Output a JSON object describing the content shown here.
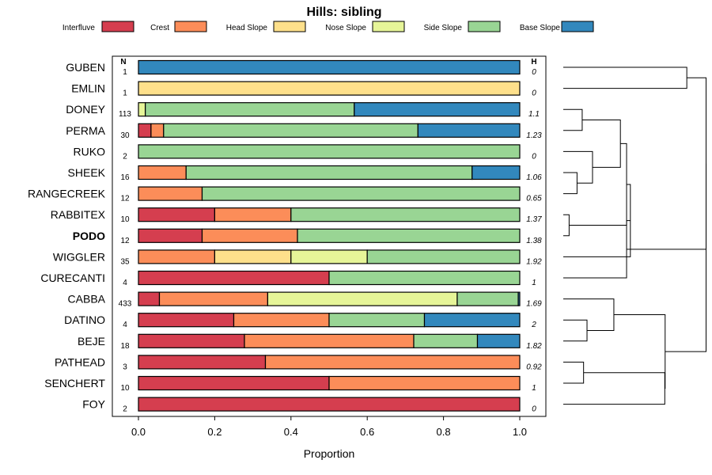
{
  "chart_data": {
    "type": "bar",
    "orientation": "horizontal",
    "stacked": true,
    "title": "Hills: sibling",
    "xlabel": "Proportion",
    "xlim": [
      0,
      1
    ],
    "xticks": [
      "0.0",
      "0.2",
      "0.4",
      "0.6",
      "0.8",
      "1.0"
    ],
    "legend_position": "top",
    "column_headers": {
      "n": "N",
      "h": "H"
    },
    "highlighted_category": "PODO",
    "legend": [
      {
        "name": "Interfluve",
        "color": "#d53e4f"
      },
      {
        "name": "Crest",
        "color": "#fc8d59"
      },
      {
        "name": "Head Slope",
        "color": "#fee08b"
      },
      {
        "name": "Nose Slope",
        "color": "#e6f598"
      },
      {
        "name": "Side Slope",
        "color": "#99d594"
      },
      {
        "name": "Base Slope",
        "color": "#3288bd"
      }
    ],
    "categories": [
      {
        "name": "GUBEN",
        "n": "1",
        "h": "0",
        "values": [
          0,
          0,
          0,
          0,
          0,
          1
        ]
      },
      {
        "name": "EMLIN",
        "n": "1",
        "h": "0",
        "values": [
          0,
          0,
          1,
          0,
          0,
          0
        ]
      },
      {
        "name": "DONEY",
        "n": "113",
        "h": "1.1",
        "values": [
          0,
          0,
          0,
          0.018,
          0.548,
          0.434
        ]
      },
      {
        "name": "PERMA",
        "n": "30",
        "h": "1.23",
        "values": [
          0.033,
          0.033,
          0,
          0,
          0.667,
          0.267
        ]
      },
      {
        "name": "RUKO",
        "n": "2",
        "h": "0",
        "values": [
          0,
          0,
          0,
          0,
          1,
          0
        ]
      },
      {
        "name": "SHEEK",
        "n": "16",
        "h": "1.06",
        "values": [
          0,
          0.125,
          0,
          0,
          0.75,
          0.125
        ]
      },
      {
        "name": "RANGECREEK",
        "n": "12",
        "h": "0.65",
        "values": [
          0,
          0.167,
          0,
          0,
          0.833,
          0
        ]
      },
      {
        "name": "RABBITEX",
        "n": "10",
        "h": "1.37",
        "values": [
          0.2,
          0.2,
          0,
          0,
          0.6,
          0
        ]
      },
      {
        "name": "PODO",
        "n": "12",
        "h": "1.38",
        "values": [
          0.167,
          0.25,
          0,
          0,
          0.583,
          0
        ]
      },
      {
        "name": "WIGGLER",
        "n": "35",
        "h": "1.92",
        "values": [
          0,
          0.2,
          0.2,
          0.2,
          0.4,
          0
        ]
      },
      {
        "name": "CURECANTI",
        "n": "4",
        "h": "1",
        "values": [
          0.5,
          0,
          0,
          0,
          0.5,
          0
        ]
      },
      {
        "name": "CABBA",
        "n": "433",
        "h": "1.69",
        "values": [
          0.055,
          0.284,
          0,
          0.497,
          0.16,
          0.004
        ]
      },
      {
        "name": "DATINO",
        "n": "4",
        "h": "2",
        "values": [
          0.25,
          0.25,
          0,
          0,
          0.25,
          0.25
        ]
      },
      {
        "name": "BEJE",
        "n": "18",
        "h": "1.82",
        "values": [
          0.278,
          0.444,
          0,
          0,
          0.167,
          0.111
        ]
      },
      {
        "name": "PATHEAD",
        "n": "3",
        "h": "0.92",
        "values": [
          0.333,
          0.667,
          0,
          0,
          0,
          0
        ]
      },
      {
        "name": "SENCHERT",
        "n": "10",
        "h": "1",
        "values": [
          0.5,
          0.5,
          0,
          0,
          0,
          0
        ]
      },
      {
        "name": "FOY",
        "n": "2",
        "h": "0",
        "values": [
          1,
          0,
          0,
          0,
          0,
          0
        ]
      }
    ],
    "dendrogram": {
      "tips": [
        "GUBEN",
        "EMLIN",
        "DONEY",
        "PERMA",
        "RUKO",
        "SHEEK",
        "RANGECREEK",
        "RABBITEX",
        "PODO",
        "WIGGLER",
        "CURECANTI",
        "CABBA",
        "DATINO",
        "BEJE",
        "PATHEAD",
        "SENCHERT",
        "FOY"
      ],
      "merges": [
        {
          "a": "t2",
          "b": "t3",
          "height": 0.055
        },
        {
          "a": "t5",
          "b": "t6",
          "height": 0.04
        },
        {
          "a": "t4",
          "b": "m1",
          "height": 0.085
        },
        {
          "a": "t7",
          "b": "t8",
          "height": 0.017
        },
        {
          "a": "m0",
          "b": "m2",
          "height": 0.166
        },
        {
          "a": "m4",
          "b": "m3",
          "height": 0.184
        },
        {
          "a": "m5",
          "b": "t9",
          "height": 0.195
        },
        {
          "a": "m6",
          "b": "t10",
          "height": 0.184
        },
        {
          "a": "t12",
          "b": "t13",
          "height": 0.069
        },
        {
          "a": "m8",
          "b": "t11",
          "height": 0.147
        },
        {
          "a": "t14",
          "b": "t15",
          "height": 0.059
        },
        {
          "a": "m10",
          "b": "t16",
          "height": 0.295
        },
        {
          "a": "m9",
          "b": "m11",
          "height": 0.296
        },
        {
          "a": "t0",
          "b": "t1",
          "height": 0.359
        },
        {
          "a": "m13",
          "b": "m7",
          "height": 0.415
        },
        {
          "a": "m14",
          "b": "m12",
          "height": 0.415
        }
      ]
    }
  }
}
